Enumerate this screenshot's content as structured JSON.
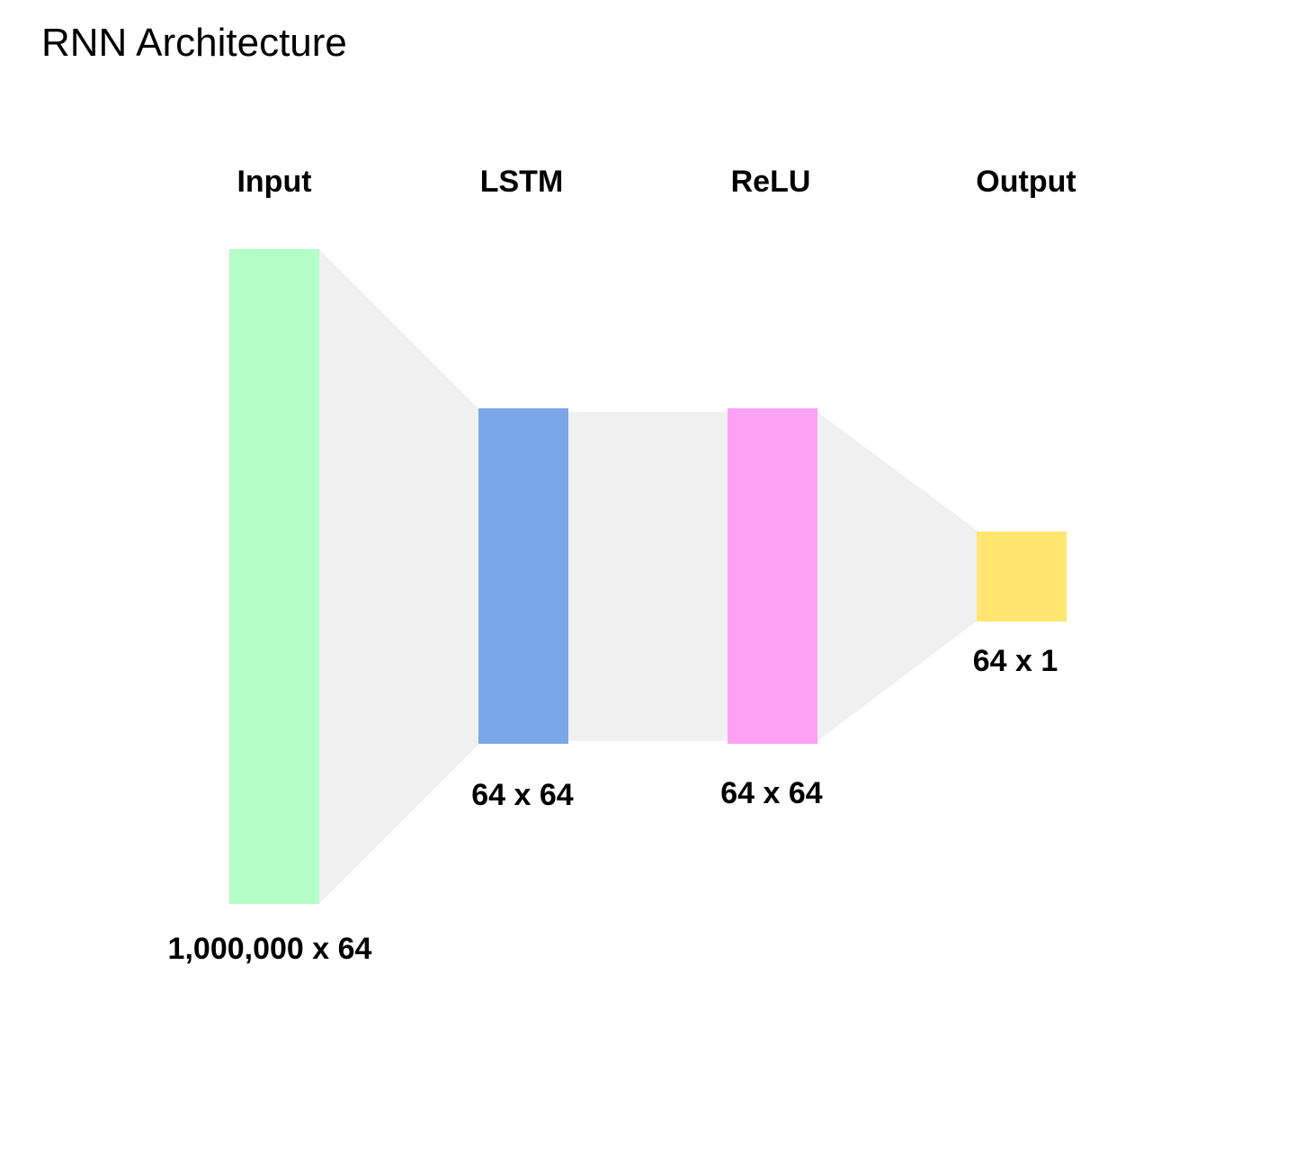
{
  "title": "RNN Architecture",
  "layers": [
    {
      "name": "Input",
      "dims": "1,000,000 x 64",
      "color": "#b3ffc7"
    },
    {
      "name": "LSTM",
      "dims": "64 x 64",
      "color": "#7ba7e8"
    },
    {
      "name": "ReLU",
      "dims": "64 x 64",
      "color": "#fda1f4"
    },
    {
      "name": "Output",
      "dims": "64 x 1",
      "color": "#ffe66e"
    }
  ],
  "connector_color": "#f0f0f0"
}
